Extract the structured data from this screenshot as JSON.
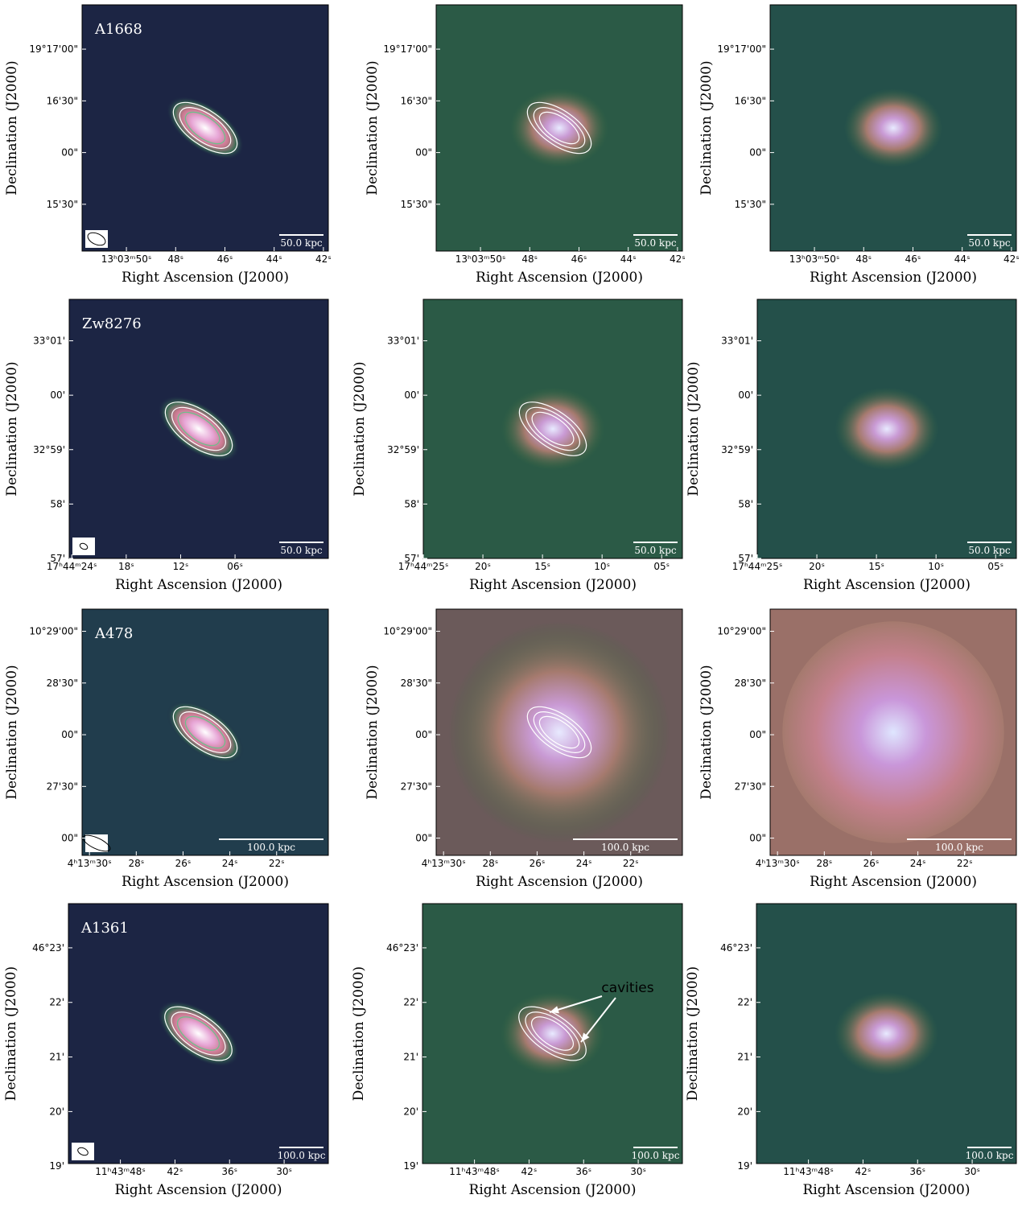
{
  "x_label": "Right Ascension (J2000)",
  "y_label": "Declination (J2000)",
  "annotation": "cavities",
  "rows": [
    {
      "name": "A1668",
      "scale": "50.0 kpc",
      "dec_ticks": [
        "19°17'00\"",
        "16'30\"",
        "00\"",
        "15'30\""
      ],
      "panels": [
        {
          "ra_ticks": [
            "13ʰ03ᵐ50ˢ",
            "48ˢ",
            "46ˢ",
            "44ˢ",
            "42ˢ"
          ]
        },
        {
          "ra_ticks": [
            "13ʰ03ᵐ50ˢ",
            "48ˢ",
            "46ˢ",
            "44ˢ",
            "42ˢ"
          ]
        },
        {
          "ra_ticks": [
            "13ʰ03ᵐ50ˢ",
            "48ˢ",
            "46ˢ",
            "44ˢ",
            "42ˢ"
          ]
        }
      ]
    },
    {
      "name": "Zw8276",
      "scale": "50.0 kpc",
      "dec_ticks": [
        "33°01'",
        "00'",
        "32°59'",
        "58'",
        "57'"
      ],
      "panels": [
        {
          "ra_ticks": [
            "17ʰ44ᵐ24ˢ",
            "18ˢ",
            "12ˢ",
            "06ˢ"
          ]
        },
        {
          "ra_ticks": [
            "17ʰ44ᵐ25ˢ",
            "20ˢ",
            "15ˢ",
            "10ˢ",
            "05ˢ"
          ]
        },
        {
          "ra_ticks": [
            "17ʰ44ᵐ25ˢ",
            "20ˢ",
            "15ˢ",
            "10ˢ",
            "05ˢ"
          ]
        }
      ]
    },
    {
      "name": "A478",
      "scale": "100.0 kpc",
      "dec_ticks": [
        "10°29'00\"",
        "28'30\"",
        "00\"",
        "27'30\"",
        "00\""
      ],
      "panels": [
        {
          "ra_ticks": [
            "4ʰ13ᵐ30ˢ",
            "28ˢ",
            "26ˢ",
            "24ˢ",
            "22ˢ"
          ]
        },
        {
          "ra_ticks": [
            "4ʰ13ᵐ30ˢ",
            "28ˢ",
            "26ˢ",
            "24ˢ",
            "22ˢ"
          ]
        },
        {
          "ra_ticks": [
            "4ʰ13ᵐ30ˢ",
            "28ˢ",
            "26ˢ",
            "24ˢ",
            "22ˢ"
          ]
        }
      ]
    },
    {
      "name": "A1361",
      "scale": "100.0 kpc",
      "dec_ticks": [
        "46°23'",
        "22'",
        "21'",
        "20'",
        "19'"
      ],
      "panels": [
        {
          "ra_ticks": [
            "11ʰ43ᵐ48ˢ",
            "42ˢ",
            "36ˢ",
            "30ˢ"
          ]
        },
        {
          "ra_ticks": [
            "11ʰ43ᵐ48ˢ",
            "42ˢ",
            "36ˢ",
            "30ˢ"
          ]
        },
        {
          "ra_ticks": [
            "11ʰ43ᵐ48ˢ",
            "42ˢ",
            "36ˢ",
            "30ˢ"
          ]
        }
      ]
    }
  ]
}
